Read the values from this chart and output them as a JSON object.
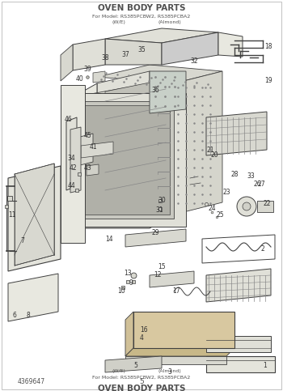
{
  "title_line1": "OVEN BODY PARTS",
  "title_line2": "For Model: RS385PCBW2, RS385PCBA2",
  "title_line3_1": "(W/E)",
  "title_line3_2": "(Almond)",
  "part_number": "4369647",
  "page_number": "5",
  "bg_color": "#ffffff",
  "lc": "#404040",
  "tc": "#505050",
  "fig_w": 3.5,
  "fig_h": 4.83,
  "dpi": 100
}
